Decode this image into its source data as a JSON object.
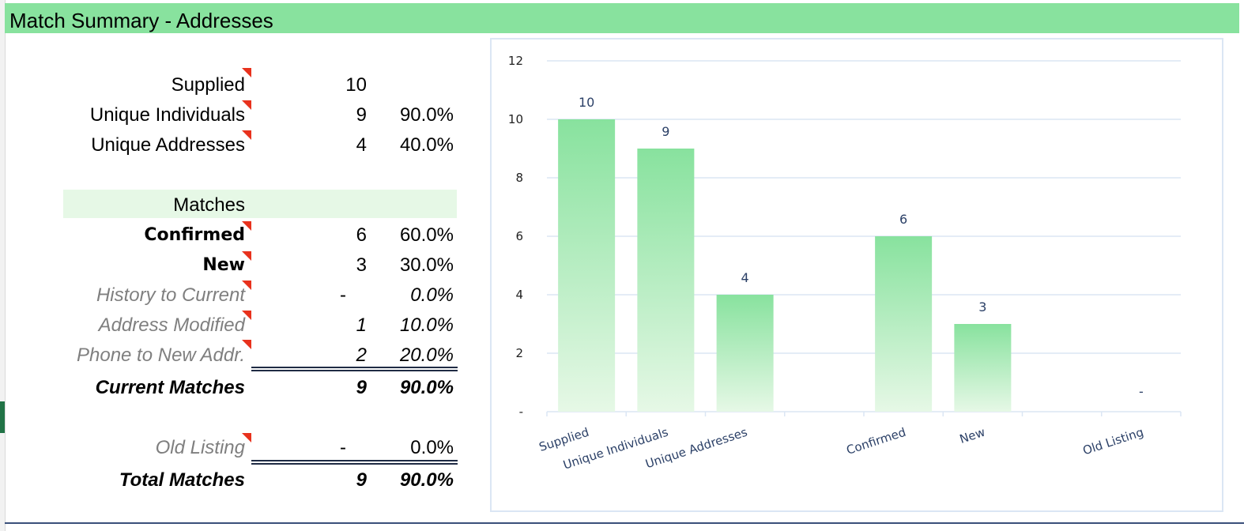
{
  "title": "Match Summary - Addresses",
  "summary": [
    {
      "label": "Supplied",
      "value": "10",
      "pct": ""
    },
    {
      "label": "Unique Individuals",
      "value": "9",
      "pct": "90.0%"
    },
    {
      "label": "Unique Addresses",
      "value": "4",
      "pct": "40.0%"
    }
  ],
  "matches_header": "Matches",
  "matches": [
    {
      "label": "Confirmed",
      "value": "6",
      "pct": "60.0%"
    },
    {
      "label": "New",
      "value": "3",
      "pct": "30.0%"
    },
    {
      "label": "History to Current",
      "value": "-",
      "pct": "0.0%"
    },
    {
      "label": "Address Modified",
      "value": "1",
      "pct": "10.0%"
    },
    {
      "label": "Phone to New Addr.",
      "value": "2",
      "pct": "20.0%"
    }
  ],
  "current_total": {
    "label": "Current Matches",
    "value": "9",
    "pct": "90.0%"
  },
  "old_listing": {
    "label": "Old Listing",
    "value": "-",
    "pct": "0.0%"
  },
  "total": {
    "label": "Total Matches",
    "value": "9",
    "pct": "90.0%"
  },
  "colors": {
    "header": "#88e29e",
    "bar_top": "#88e29e",
    "bar_bottom": "#e6f8e6",
    "flag": "#e8321d"
  },
  "chart_data": {
    "type": "bar",
    "categories": [
      "Supplied",
      "Unique Individuals",
      "Unique Addresses",
      "",
      "Confirmed",
      "New",
      "",
      "Old Listing"
    ],
    "values": [
      10,
      9,
      4,
      null,
      6,
      3,
      null,
      0
    ],
    "data_labels": [
      "10",
      "9",
      "4",
      "",
      "6",
      "3",
      "",
      "-"
    ],
    "yticks": [
      "-",
      "2",
      "4",
      "6",
      "8",
      "10",
      "12"
    ],
    "ylim": [
      0,
      12
    ],
    "grid": true,
    "legend": "none"
  }
}
